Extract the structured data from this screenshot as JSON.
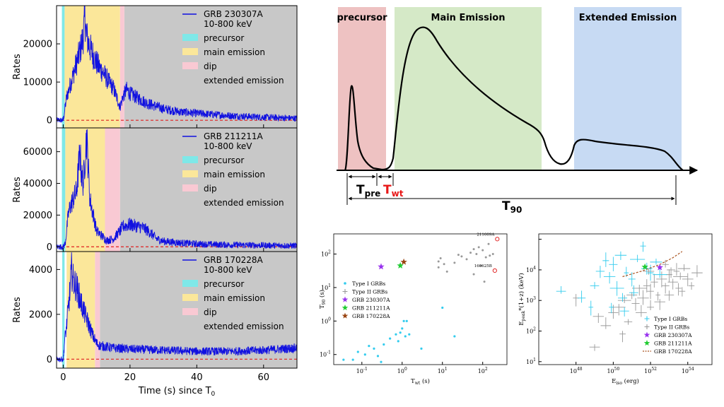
{
  "colors": {
    "lightcurve": "#1010e0",
    "precursor": "#7fe8e8",
    "main": "#fbe79a",
    "dip": "#f9c9d3",
    "extended": "#c8c8c8",
    "zero_line": "#e02020",
    "schem_precursor": "#eec2c2",
    "schem_main": "#d5e9c7",
    "schem_extended": "#c7daf3",
    "type1": "#33ccee",
    "type2": "#999999",
    "grb230307A": "#9933ee",
    "grb211211A": "#22cc33",
    "grb170228A": "#994411",
    "amati_fit": "#aa5522"
  },
  "legend_common": {
    "precursor": "precursor",
    "main": "main emission",
    "dip": "dip",
    "extended": "extended emission"
  },
  "chart_data": [
    {
      "type": "line",
      "series": [
        {
          "name": "GRB 230307A",
          "energy": "10-800 keV"
        }
      ],
      "ylabel": "Rates",
      "xlim": [
        -2,
        70
      ],
      "ylim": [
        -2000,
        30000
      ],
      "yticks": [
        0,
        10000,
        20000
      ],
      "ytick_labels": [
        "0",
        "10000",
        "20000"
      ],
      "intervals": {
        "precursor": [
          -0.4,
          0.4
        ],
        "main": [
          0.4,
          17.0
        ],
        "dip": [
          17.0,
          18.3
        ],
        "extended": [
          18.3,
          70
        ]
      },
      "envelope": [
        [
          0,
          0
        ],
        [
          0.5,
          3000
        ],
        [
          1,
          6000
        ],
        [
          2,
          9000
        ],
        [
          3,
          12000
        ],
        [
          4,
          15000
        ],
        [
          5,
          18000
        ],
        [
          6,
          22000
        ],
        [
          6.5,
          27000
        ],
        [
          7,
          22000
        ],
        [
          8,
          19000
        ],
        [
          9,
          17000
        ],
        [
          10,
          15000
        ],
        [
          11,
          13500
        ],
        [
          12,
          12500
        ],
        [
          13,
          11000
        ],
        [
          14,
          9500
        ],
        [
          15,
          8500
        ],
        [
          16,
          6000
        ],
        [
          17,
          3500
        ],
        [
          18,
          6500
        ],
        [
          19,
          8000
        ],
        [
          20,
          7000
        ],
        [
          22,
          6000
        ],
        [
          25,
          4500
        ],
        [
          30,
          3000
        ],
        [
          35,
          2200
        ],
        [
          40,
          1800
        ],
        [
          50,
          1200
        ],
        [
          60,
          800
        ],
        [
          70,
          500
        ]
      ]
    },
    {
      "type": "line",
      "series": [
        {
          "name": "GRB 211211A",
          "energy": "10-800 keV"
        }
      ],
      "ylabel": "Rates",
      "xlim": [
        -2,
        70
      ],
      "ylim": [
        -3000,
        75000
      ],
      "yticks": [
        0,
        20000,
        40000,
        60000
      ],
      "ytick_labels": [
        "0",
        "20000",
        "40000",
        "60000"
      ],
      "intervals": {
        "precursor": [
          -0.4,
          0.6
        ],
        "main": [
          0.6,
          12.5
        ],
        "dip": [
          12.5,
          17.0
        ],
        "extended": [
          17.0,
          70
        ]
      },
      "envelope": [
        [
          0,
          0
        ],
        [
          0.6,
          2000
        ],
        [
          1.5,
          20000
        ],
        [
          2,
          25000
        ],
        [
          3,
          30000
        ],
        [
          4,
          35000
        ],
        [
          5,
          60000
        ],
        [
          5.5,
          45000
        ],
        [
          6,
          40000
        ],
        [
          7,
          70000
        ],
        [
          7.5,
          50000
        ],
        [
          8,
          30000
        ],
        [
          9,
          20000
        ],
        [
          10,
          10000
        ],
        [
          11,
          8000
        ],
        [
          12,
          6000
        ],
        [
          13,
          4000
        ],
        [
          15,
          5000
        ],
        [
          17,
          10000
        ],
        [
          18,
          13000
        ],
        [
          20,
          14000
        ],
        [
          22,
          13000
        ],
        [
          24,
          12000
        ],
        [
          26,
          9000
        ],
        [
          28,
          5000
        ],
        [
          30,
          3500
        ],
        [
          35,
          2500
        ],
        [
          40,
          1800
        ],
        [
          50,
          1200
        ],
        [
          60,
          900
        ],
        [
          70,
          700
        ]
      ]
    },
    {
      "type": "line",
      "series": [
        {
          "name": "GRB 170228A",
          "energy": "10-800 keV"
        }
      ],
      "ylabel": "Rates",
      "xlabel": "Time (s) since T",
      "xlabel_sub": "0",
      "xlim": [
        -2,
        70
      ],
      "ylim": [
        -400,
        4800
      ],
      "yticks": [
        0,
        2000,
        4000
      ],
      "ytick_labels": [
        "0",
        "2000",
        "4000"
      ],
      "xticks": [
        0,
        20,
        40,
        60
      ],
      "xtick_labels": [
        "0",
        "20",
        "40",
        "60"
      ],
      "intervals": {
        "precursor": [
          -0.3,
          0.4
        ],
        "main": [
          1.0,
          9.5
        ],
        "dip": [
          9.5,
          11.0
        ],
        "extended": [
          11.0,
          70
        ]
      },
      "envelope": [
        [
          0,
          0
        ],
        [
          0.4,
          800
        ],
        [
          1,
          1500
        ],
        [
          2,
          3000
        ],
        [
          2.5,
          4000
        ],
        [
          3,
          3500
        ],
        [
          4,
          3200
        ],
        [
          5,
          2700
        ],
        [
          6,
          2200
        ],
        [
          7,
          1800
        ],
        [
          8,
          1400
        ],
        [
          9,
          1000
        ],
        [
          10,
          700
        ],
        [
          11,
          600
        ],
        [
          13,
          550
        ],
        [
          15,
          500
        ],
        [
          20,
          450
        ],
        [
          30,
          400
        ],
        [
          40,
          350
        ],
        [
          50,
          350
        ],
        [
          60,
          400
        ],
        [
          70,
          500
        ]
      ]
    },
    {
      "type": "scatter",
      "xlabel": "T",
      "xlabel_sub": "wt",
      "xlabel_unit": " (s)",
      "ylabel": "T",
      "ylabel_sub": "90",
      "ylabel_unit": " (s)",
      "xscale": "log",
      "yscale": "log",
      "xlim": [
        0.02,
        400
      ],
      "ylim": [
        0.05,
        400
      ],
      "xticks": [
        0.1,
        1,
        10,
        100
      ],
      "yticks": [
        0.1,
        1,
        10,
        100
      ],
      "legend": [
        "Type I GRBs",
        "Type II GRBs",
        "GRB 230307A",
        "GRB 211211A",
        "GRB 170228A"
      ],
      "annotations": [
        "211009A",
        "160625B"
      ],
      "type1": [
        [
          0.035,
          0.07
        ],
        [
          0.06,
          0.07
        ],
        [
          0.08,
          0.12
        ],
        [
          0.12,
          0.1
        ],
        [
          0.15,
          0.18
        ],
        [
          0.2,
          0.15
        ],
        [
          0.25,
          0.09
        ],
        [
          0.3,
          0.06
        ],
        [
          0.35,
          0.2
        ],
        [
          0.5,
          0.3
        ],
        [
          0.7,
          0.4
        ],
        [
          0.9,
          0.45
        ],
        [
          1.0,
          0.6
        ],
        [
          1.2,
          0.35
        ],
        [
          0.8,
          0.25
        ],
        [
          1.1,
          1.0
        ],
        [
          1.3,
          1.0
        ],
        [
          1.5,
          0.4
        ],
        [
          3,
          0.15
        ],
        [
          10,
          2.5
        ],
        [
          20,
          0.35
        ]
      ],
      "type2": [
        [
          8,
          60
        ],
        [
          8,
          40
        ],
        [
          9,
          75
        ],
        [
          11,
          50
        ],
        [
          13,
          30
        ],
        [
          20,
          55
        ],
        [
          25,
          95
        ],
        [
          30,
          85
        ],
        [
          40,
          70
        ],
        [
          50,
          110
        ],
        [
          60,
          140
        ],
        [
          70,
          100
        ],
        [
          80,
          160
        ],
        [
          100,
          130
        ],
        [
          120,
          80
        ],
        [
          140,
          200
        ],
        [
          90,
          45
        ],
        [
          60,
          25
        ],
        [
          110,
          15
        ],
        [
          150,
          90
        ],
        [
          180,
          100
        ]
      ],
      "special": [
        {
          "name": "211009A",
          "x": 230,
          "y": 280
        },
        {
          "name": "160625B",
          "x": 200,
          "y": 32
        }
      ],
      "grb230307A": [
        0.3,
        42
      ],
      "grb211211A": [
        0.9,
        45
      ],
      "grb170228A": [
        1.1,
        58
      ]
    },
    {
      "type": "scatter",
      "xlabel": "E",
      "xlabel_sub": "iso",
      "xlabel_unit": " (erg)",
      "ylabel": "E",
      "ylabel_sub": "peak",
      "ylabel_unit": "*(1+z) (keV)",
      "xscale": "log",
      "yscale": "log",
      "xlim_exp": [
        46,
        55.3
      ],
      "ylim": [
        0.8,
        15000
      ],
      "xtick_labels": [
        "10",
        "10",
        "10",
        "10"
      ],
      "xtick_sups": [
        "48",
        "50",
        "52",
        "54"
      ],
      "yticks": [
        1,
        10,
        100,
        1000,
        10000
      ],
      "ytick_labels": [
        "10",
        "10",
        "10",
        "10"
      ],
      "ytick_sups": [
        "1",
        "2",
        "3",
        "4"
      ],
      "legend": [
        "Type I GRBs",
        "Type II GRBs",
        "GRB 230307A",
        "GRB 211211A",
        "GRB 170228A"
      ],
      "type1": [
        [
          47.2,
          200
        ],
        [
          48.3,
          120
        ],
        [
          48.8,
          60
        ],
        [
          49.0,
          300
        ],
        [
          49.3,
          900
        ],
        [
          49.6,
          2000
        ],
        [
          49.8,
          600
        ],
        [
          50.0,
          1500
        ],
        [
          50.2,
          250
        ],
        [
          50.4,
          3000
        ],
        [
          50.5,
          120
        ],
        [
          50.7,
          800
        ],
        [
          51.0,
          500
        ],
        [
          51.3,
          2200
        ],
        [
          51.6,
          6000
        ],
        [
          51.8,
          1100
        ],
        [
          52.0,
          800
        ],
        [
          52.3,
          1800
        ],
        [
          52.5,
          700
        ],
        [
          49.9,
          60
        ],
        [
          50.6,
          45
        ],
        [
          51.1,
          180
        ]
      ],
      "type2": [
        [
          48.0,
          120
        ],
        [
          49.2,
          30
        ],
        [
          49.6,
          15
        ],
        [
          50.0,
          40
        ],
        [
          50.3,
          60
        ],
        [
          50.6,
          100
        ],
        [
          50.8,
          20
        ],
        [
          51.0,
          150
        ],
        [
          51.2,
          80
        ],
        [
          51.4,
          250
        ],
        [
          51.6,
          120
        ],
        [
          51.8,
          300
        ],
        [
          52.0,
          200
        ],
        [
          52.2,
          400
        ],
        [
          52.4,
          150
        ],
        [
          52.6,
          500
        ],
        [
          52.8,
          300
        ],
        [
          53.0,
          700
        ],
        [
          53.2,
          400
        ],
        [
          53.4,
          900
        ],
        [
          53.6,
          600
        ],
        [
          53.8,
          1100
        ],
        [
          54.0,
          500
        ],
        [
          54.2,
          300
        ],
        [
          51.5,
          40
        ],
        [
          52.0,
          60
        ],
        [
          52.5,
          90
        ],
        [
          53.0,
          150
        ],
        [
          53.5,
          250
        ],
        [
          50.5,
          8
        ],
        [
          49.0,
          3
        ],
        [
          52.8,
          1500
        ],
        [
          53.1,
          1000
        ],
        [
          51.9,
          900
        ],
        [
          53.7,
          200
        ],
        [
          54.5,
          800
        ]
      ],
      "grb230307A": [
        52.5,
        1200
      ],
      "grb211211A": [
        51.7,
        1250
      ],
      "grb170228A_fit": [
        [
          50.5,
          600
        ],
        [
          51.5,
          900
        ],
        [
          52.5,
          1500
        ],
        [
          53.2,
          2500
        ],
        [
          53.7,
          4000
        ]
      ]
    }
  ],
  "schematic": {
    "precursor_label": "precursor",
    "main_label": "Main Emission",
    "extended_label": "Extended Emission",
    "tpre": "T",
    "tpre_sub": "pre",
    "twt": "T",
    "twt_sub": "wt",
    "t90": "T",
    "t90_sub": "90"
  }
}
